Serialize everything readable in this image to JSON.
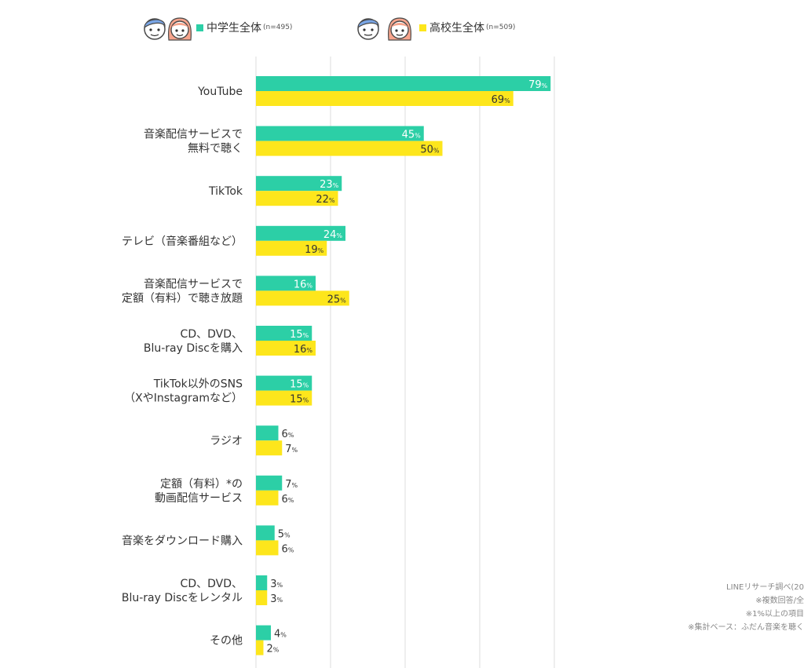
{
  "legend": {
    "series1_label": "中学生全体",
    "series1_n": "(n=495)",
    "series2_label": "高校生全体",
    "series2_n": "(n=509)"
  },
  "colors": {
    "series1": "#2ccfa6",
    "series2": "#fde61c",
    "grid": "#dcdcdc"
  },
  "icons": [
    "boy-face-icon",
    "girl-face-icon"
  ],
  "notes": [
    "LINEリサーチ調べ(20",
    "※複数回答/全",
    "※1%以上の項目",
    "※集計ベース：ふだん音楽を聴く"
  ],
  "chart_data": {
    "type": "bar",
    "orientation": "horizontal",
    "unit": "%",
    "xlim": [
      0,
      100
    ],
    "grid": true,
    "categories": [
      "YouTube",
      "音楽配信サービスで\n無料で聴く",
      "TikTok",
      "テレビ（音楽番組など）",
      "音楽配信サービスで\n定額（有料）で聴き放題",
      "CD、DVD、\nBlu-ray Discを購入",
      "TikTok以外のSNS\n（XやInstagramなど）",
      "ラジオ",
      "定額（有料）*の\n動画配信サービス",
      "音楽をダウンロード購入",
      "CD、DVD、\nBlu-ray Discをレンタル",
      "その他"
    ],
    "series": [
      {
        "name": "中学生全体",
        "values": [
          79,
          45,
          23,
          24,
          16,
          15,
          15,
          6,
          7,
          5,
          3,
          4
        ]
      },
      {
        "name": "高校生全体",
        "values": [
          69,
          50,
          22,
          19,
          25,
          16,
          15,
          7,
          6,
          6,
          3,
          2
        ]
      }
    ]
  }
}
